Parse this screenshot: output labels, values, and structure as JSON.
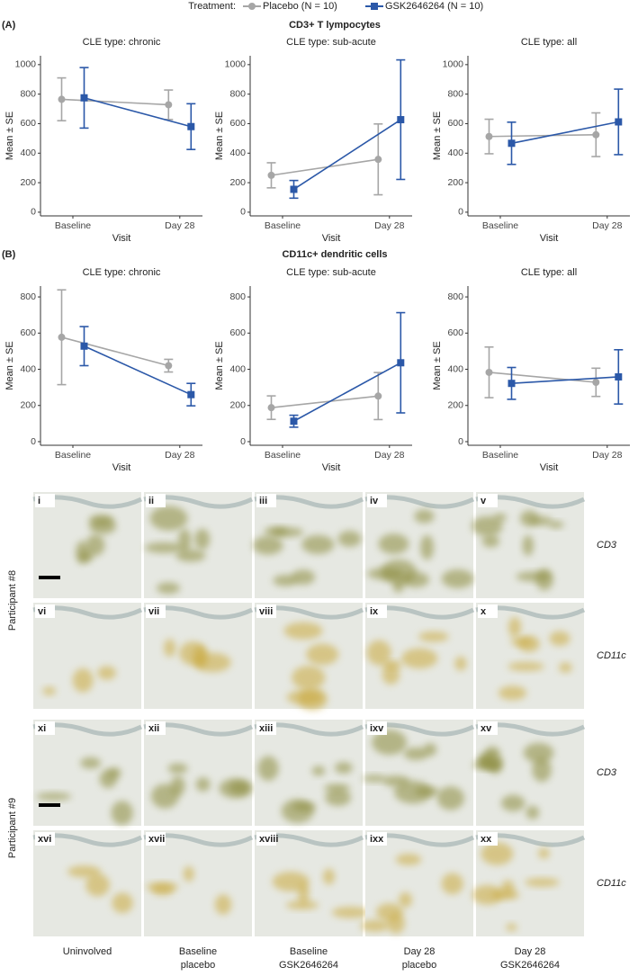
{
  "legend_title": "Treatment:",
  "sections": [
    {
      "label": "(A)",
      "title": "CD3+ T lympocytes"
    },
    {
      "label": "(B)",
      "title": "CD11c+ dendritic cells"
    }
  ],
  "chart_data": [
    {
      "type": "line",
      "title": "CLE type: chronic",
      "xlabel": "Visit",
      "ylabel": "Mean ± SE",
      "categories": [
        "Baseline",
        "Day 28"
      ],
      "ylim": [
        -25,
        1060
      ],
      "yticks": [
        0,
        200,
        400,
        600,
        800,
        1000
      ],
      "series": [
        {
          "name": "Placebo (N = 10)",
          "color": "#a6a6a6",
          "marker": "circle",
          "values": [
            765,
            728
          ],
          "errors": [
            145,
            100
          ]
        },
        {
          "name": "GSK2646264 (N = 10)",
          "color": "#2b58a8",
          "marker": "square",
          "values": [
            775,
            580
          ],
          "errors": [
            205,
            155
          ]
        }
      ]
    },
    {
      "type": "line",
      "title": "CLE type: sub-acute",
      "xlabel": "Visit",
      "ylabel": "Mean ± SE",
      "categories": [
        "Baseline",
        "Day 28"
      ],
      "ylim": [
        -25,
        1060
      ],
      "yticks": [
        0,
        200,
        400,
        600,
        800,
        1000
      ],
      "series": [
        {
          "name": "Placebo (N = 10)",
          "color": "#a6a6a6",
          "marker": "circle",
          "values": [
            250,
            358
          ],
          "errors": [
            85,
            240
          ]
        },
        {
          "name": "GSK2646264 (N = 10)",
          "color": "#2b58a8",
          "marker": "square",
          "values": [
            155,
            627
          ],
          "errors": [
            60,
            405
          ]
        }
      ]
    },
    {
      "type": "line",
      "title": "CLE type: all",
      "xlabel": "Visit",
      "ylabel": "Mean ± SE",
      "categories": [
        "Baseline",
        "Day 28"
      ],
      "ylim": [
        -25,
        1060
      ],
      "yticks": [
        0,
        200,
        400,
        600,
        800,
        1000
      ],
      "series": [
        {
          "name": "Placebo (N = 10)",
          "color": "#a6a6a6",
          "marker": "circle",
          "values": [
            513,
            525
          ],
          "errors": [
            117,
            148
          ]
        },
        {
          "name": "GSK2646264 (N = 10)",
          "color": "#2b58a8",
          "marker": "square",
          "values": [
            467,
            612
          ],
          "errors": [
            143,
            222
          ]
        }
      ]
    },
    {
      "type": "line",
      "title": "CLE type: chronic",
      "xlabel": "Visit",
      "ylabel": "Mean ± SE",
      "categories": [
        "Baseline",
        "Day 28"
      ],
      "ylim": [
        -20,
        860
      ],
      "yticks": [
        0,
        200,
        400,
        600,
        800
      ],
      "series": [
        {
          "name": "Placebo (N = 10)",
          "color": "#a6a6a6",
          "marker": "circle",
          "values": [
            577,
            420
          ],
          "errors": [
            262,
            35
          ]
        },
        {
          "name": "GSK2646264 (N = 10)",
          "color": "#2b58a8",
          "marker": "square",
          "values": [
            528,
            260
          ],
          "errors": [
            108,
            62
          ]
        }
      ]
    },
    {
      "type": "line",
      "title": "CLE type: sub-acute",
      "xlabel": "Visit",
      "ylabel": "Mean ± SE",
      "categories": [
        "Baseline",
        "Day 28"
      ],
      "ylim": [
        -20,
        860
      ],
      "yticks": [
        0,
        200,
        400,
        600,
        800
      ],
      "series": [
        {
          "name": "Placebo (N = 10)",
          "color": "#a6a6a6",
          "marker": "circle",
          "values": [
            188,
            252
          ],
          "errors": [
            65,
            130
          ]
        },
        {
          "name": "GSK2646264 (N = 10)",
          "color": "#2b58a8",
          "marker": "square",
          "values": [
            113,
            436
          ],
          "errors": [
            33,
            277
          ]
        }
      ]
    },
    {
      "type": "line",
      "title": "CLE type: all",
      "xlabel": "Visit",
      "ylabel": "Mean ± SE",
      "categories": [
        "Baseline",
        "Day 28"
      ],
      "ylim": [
        -20,
        860
      ],
      "yticks": [
        0,
        200,
        400,
        600,
        800
      ],
      "series": [
        {
          "name": "Placebo (N = 10)",
          "color": "#a6a6a6",
          "marker": "circle",
          "values": [
            383,
            328
          ],
          "errors": [
            140,
            78
          ]
        },
        {
          "name": "GSK2646264 (N = 10)",
          "color": "#2b58a8",
          "marker": "square",
          "values": [
            322,
            358
          ],
          "errors": [
            88,
            150
          ]
        }
      ]
    }
  ],
  "micrographs": {
    "participants": [
      {
        "label": "Participant #8",
        "rows": [
          {
            "stain": "CD3",
            "panels": [
              "i",
              "ii",
              "iii",
              "iv",
              "v"
            ]
          },
          {
            "stain": "CD11c",
            "panels": [
              "vi",
              "vii",
              "viii",
              "ix",
              "x"
            ]
          }
        ]
      },
      {
        "label": "Participant #9",
        "rows": [
          {
            "stain": "CD3",
            "panels": [
              "xi",
              "xii",
              "xiii",
              "ixv",
              "xv"
            ]
          },
          {
            "stain": "CD11c",
            "panels": [
              "xvi",
              "xvii",
              "xviii",
              "ixx",
              "xx"
            ]
          }
        ]
      }
    ],
    "columns": [
      [
        "Uninvolved"
      ],
      [
        "Baseline",
        "placebo"
      ],
      [
        "Baseline",
        "GSK2646264"
      ],
      [
        "Day 28",
        "placebo"
      ],
      [
        "Day 28",
        "GSK2646264"
      ]
    ]
  }
}
